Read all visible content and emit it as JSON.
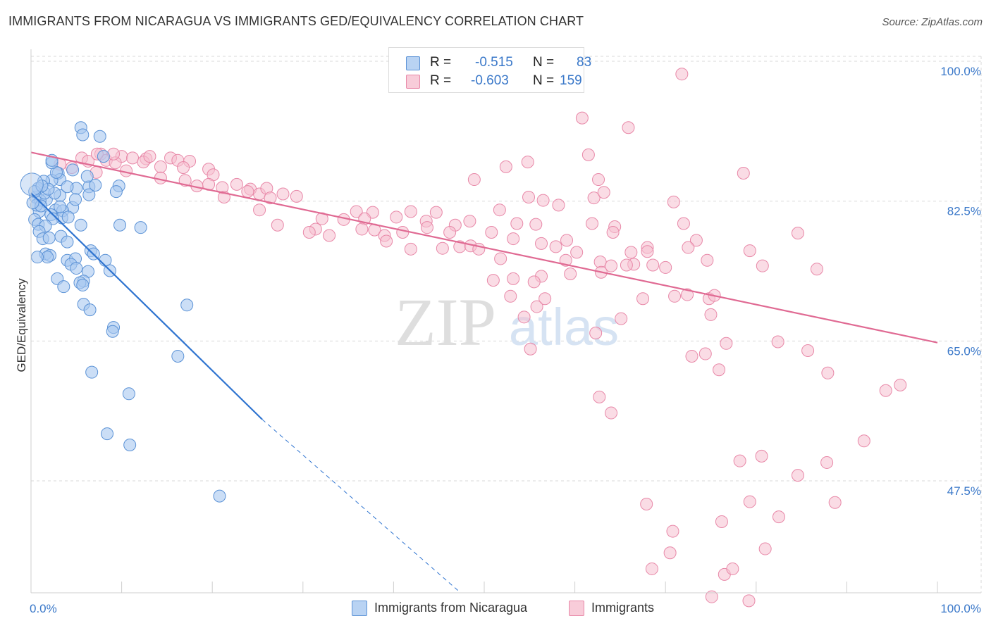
{
  "header": {
    "title": "IMMIGRANTS FROM NICARAGUA VS IMMIGRANTS GED/EQUIVALENCY CORRELATION CHART",
    "source": "Source: ZipAtlas.com"
  },
  "legend": {
    "series1": {
      "r_label": "R =",
      "r_value": "-0.515",
      "n_label": "N =",
      "n_value": "83"
    },
    "series2": {
      "r_label": "R =",
      "r_value": "-0.603",
      "n_label": "N =",
      "n_value": "159"
    }
  },
  "watermark": {
    "part1": "ZIP",
    "part2": "atlas"
  },
  "colors": {
    "blue_fill": "#a9c8f0",
    "blue_stroke": "#5b92d6",
    "blue_line": "#2f74d0",
    "pink_fill": "#f6bfd0",
    "pink_stroke": "#e888a8",
    "pink_line": "#e06a93",
    "tick_label": "#3a78c9",
    "grid": "#d9d9d9"
  },
  "chart_data": {
    "type": "scatter",
    "title": "IMMIGRANTS FROM NICARAGUA VS IMMIGRANTS GED/EQUIVALENCY CORRELATION CHART",
    "xlabel": "",
    "ylabel": "GED/Equivalency",
    "xlim": [
      0,
      100
    ],
    "ylim": [
      33.5,
      101.5
    ],
    "x_tick_labels": [
      "0.0%",
      "100.0%"
    ],
    "y_ticks": [
      47.5,
      65.0,
      82.5,
      100.0
    ],
    "y_tick_labels": [
      "47.5%",
      "65.0%",
      "82.5%",
      "100.0%"
    ],
    "grid": true,
    "legend_position": "top-center and bottom",
    "series": [
      {
        "name": "Immigrants from Nicaragua",
        "color": "#5b92d6",
        "points": [
          [
            5.5,
            91.7
          ],
          [
            7.6,
            90.6
          ],
          [
            5.7,
            90.8
          ],
          [
            3.0,
            86.0
          ],
          [
            3.2,
            85.2
          ],
          [
            2.3,
            85.1
          ],
          [
            1.4,
            85.0
          ],
          [
            5.0,
            84.1
          ],
          [
            6.4,
            84.3
          ],
          [
            6.4,
            83.3
          ],
          [
            7.1,
            84.5
          ],
          [
            6.2,
            85.6
          ],
          [
            9.7,
            84.4
          ],
          [
            9.4,
            83.7
          ],
          [
            0.5,
            83.0
          ],
          [
            1.7,
            82.7
          ],
          [
            3.2,
            83.2
          ],
          [
            1.0,
            82.6
          ],
          [
            2.7,
            81.4
          ],
          [
            4.6,
            81.7
          ],
          [
            0.9,
            81.2
          ],
          [
            2.2,
            80.8
          ],
          [
            3.5,
            81.3
          ],
          [
            3.4,
            80.4
          ],
          [
            4.1,
            80.5
          ],
          [
            2.4,
            80.3
          ],
          [
            0.4,
            80.2
          ],
          [
            0.8,
            79.6
          ],
          [
            1.6,
            79.4
          ],
          [
            5.5,
            79.5
          ],
          [
            9.8,
            79.5
          ],
          [
            12.1,
            79.2
          ],
          [
            0.9,
            78.7
          ],
          [
            1.3,
            77.8
          ],
          [
            2.0,
            77.9
          ],
          [
            3.3,
            78.1
          ],
          [
            4.0,
            77.4
          ],
          [
            6.6,
            76.3
          ],
          [
            6.9,
            75.9
          ],
          [
            1.6,
            75.9
          ],
          [
            2.1,
            75.7
          ],
          [
            1.8,
            75.5
          ],
          [
            0.7,
            75.5
          ],
          [
            4.0,
            75.1
          ],
          [
            4.9,
            75.3
          ],
          [
            8.2,
            75.1
          ],
          [
            4.4,
            74.6
          ],
          [
            5.0,
            74.1
          ],
          [
            6.3,
            73.7
          ],
          [
            8.7,
            73.8
          ],
          [
            2.9,
            72.8
          ],
          [
            5.8,
            72.5
          ],
          [
            5.4,
            72.3
          ],
          [
            5.7,
            72.0
          ],
          [
            3.6,
            71.8
          ],
          [
            5.8,
            69.6
          ],
          [
            17.2,
            69.5
          ],
          [
            6.5,
            68.9
          ],
          [
            9.1,
            66.7
          ],
          [
            9.0,
            66.2
          ],
          [
            16.2,
            63.1
          ],
          [
            6.7,
            61.1
          ],
          [
            10.8,
            58.4
          ],
          [
            8.4,
            53.4
          ],
          [
            10.9,
            52.0
          ],
          [
            20.8,
            45.6
          ],
          [
            1.5,
            83.5
          ],
          [
            4.9,
            82.7
          ],
          [
            0.6,
            82.0
          ],
          [
            1.1,
            81.9
          ],
          [
            2.6,
            83.5
          ],
          [
            3.2,
            81.8
          ],
          [
            0.8,
            84.1
          ],
          [
            0.4,
            83.7
          ],
          [
            2.8,
            86.1
          ],
          [
            4.0,
            84.3
          ],
          [
            8.0,
            88.1
          ],
          [
            1.9,
            84.0
          ],
          [
            2.3,
            87.3
          ],
          [
            2.3,
            87.6
          ],
          [
            4.6,
            86.4
          ],
          [
            0.2,
            82.3
          ],
          [
            1.2,
            84.4
          ]
        ],
        "trendline": {
          "x": [
            0,
            25.5
          ],
          "y": [
            83.5,
            55.2
          ],
          "dashed_extension": {
            "x": [
              25.5,
              47.4
            ],
            "y": [
              55.2,
              33.5
            ]
          }
        }
      },
      {
        "name": "Immigrants",
        "color": "#e888a8",
        "points": [
          [
            71.8,
            98.4
          ],
          [
            60.8,
            92.9
          ],
          [
            65.9,
            91.7
          ],
          [
            7.7,
            88.4
          ],
          [
            10.0,
            88.1
          ],
          [
            11.2,
            87.9
          ],
          [
            12.7,
            87.8
          ],
          [
            5.6,
            87.9
          ],
          [
            6.3,
            87.5
          ],
          [
            8.3,
            87.6
          ],
          [
            9.3,
            87.3
          ],
          [
            12.4,
            87.4
          ],
          [
            15.4,
            87.9
          ],
          [
            16.2,
            87.6
          ],
          [
            17.5,
            87.5
          ],
          [
            7.3,
            88.4
          ],
          [
            9.1,
            88.4
          ],
          [
            13.1,
            88.1
          ],
          [
            3.2,
            87.1
          ],
          [
            4.5,
            86.7
          ],
          [
            7.2,
            86.1
          ],
          [
            10.5,
            86.3
          ],
          [
            14.3,
            86.8
          ],
          [
            16.8,
            86.7
          ],
          [
            19.6,
            86.5
          ],
          [
            20.1,
            85.8
          ],
          [
            61.5,
            88.3
          ],
          [
            54.8,
            87.4
          ],
          [
            52.4,
            86.8
          ],
          [
            48.9,
            85.2
          ],
          [
            62.6,
            85.2
          ],
          [
            78.6,
            86.0
          ],
          [
            14.3,
            85.4
          ],
          [
            17.0,
            85.1
          ],
          [
            19.6,
            84.6
          ],
          [
            22.7,
            84.6
          ],
          [
            24.2,
            84.0
          ],
          [
            25.2,
            83.4
          ],
          [
            18.3,
            84.4
          ],
          [
            21.1,
            84.2
          ],
          [
            23.9,
            83.7
          ],
          [
            26.0,
            84.1
          ],
          [
            27.8,
            83.4
          ],
          [
            29.3,
            83.1
          ],
          [
            21.3,
            83.0
          ],
          [
            26.4,
            82.9
          ],
          [
            54.9,
            83.0
          ],
          [
            56.5,
            82.6
          ],
          [
            58.2,
            82.0
          ],
          [
            62.1,
            82.9
          ],
          [
            63.2,
            83.6
          ],
          [
            70.9,
            82.4
          ],
          [
            25.2,
            81.4
          ],
          [
            35.9,
            81.2
          ],
          [
            37.7,
            81.1
          ],
          [
            41.9,
            81.2
          ],
          [
            44.7,
            81.1
          ],
          [
            51.7,
            81.4
          ],
          [
            32.1,
            80.3
          ],
          [
            34.5,
            80.2
          ],
          [
            36.8,
            80.3
          ],
          [
            40.3,
            80.5
          ],
          [
            43.6,
            80.0
          ],
          [
            48.4,
            80.0
          ],
          [
            53.6,
            79.7
          ],
          [
            55.7,
            79.6
          ],
          [
            61.9,
            79.7
          ],
          [
            64.4,
            79.3
          ],
          [
            72.0,
            79.7
          ],
          [
            27.2,
            79.5
          ],
          [
            31.4,
            79.0
          ],
          [
            30.7,
            78.6
          ],
          [
            32.9,
            78.2
          ],
          [
            36.5,
            79.0
          ],
          [
            37.9,
            78.9
          ],
          [
            39.0,
            78.2
          ],
          [
            41.0,
            78.6
          ],
          [
            43.7,
            79.2
          ],
          [
            46.8,
            79.5
          ],
          [
            50.8,
            78.6
          ],
          [
            46.2,
            78.6
          ],
          [
            64.2,
            78.6
          ],
          [
            59.1,
            77.6
          ],
          [
            56.3,
            77.2
          ],
          [
            53.2,
            77.8
          ],
          [
            73.4,
            77.6
          ],
          [
            39.2,
            77.5
          ],
          [
            47.3,
            76.8
          ],
          [
            48.5,
            76.9
          ],
          [
            57.9,
            76.8
          ],
          [
            68.0,
            76.7
          ],
          [
            72.5,
            76.7
          ],
          [
            68.0,
            76.2
          ],
          [
            79.3,
            76.3
          ],
          [
            84.6,
            78.5
          ],
          [
            41.9,
            76.5
          ],
          [
            45.4,
            76.6
          ],
          [
            49.4,
            76.5
          ],
          [
            60.2,
            76.1
          ],
          [
            66.2,
            76.1
          ],
          [
            51.8,
            75.3
          ],
          [
            59.0,
            75.1
          ],
          [
            62.8,
            74.9
          ],
          [
            66.5,
            74.6
          ],
          [
            70.0,
            74.2
          ],
          [
            74.6,
            75.1
          ],
          [
            80.7,
            74.4
          ],
          [
            86.7,
            74.0
          ],
          [
            68.6,
            74.5
          ],
          [
            65.7,
            74.5
          ],
          [
            64.0,
            74.4
          ],
          [
            62.9,
            73.6
          ],
          [
            59.5,
            73.4
          ],
          [
            56.3,
            73.1
          ],
          [
            53.2,
            72.8
          ],
          [
            51.0,
            72.6
          ],
          [
            55.5,
            72.4
          ],
          [
            52.9,
            70.6
          ],
          [
            56.7,
            70.3
          ],
          [
            67.5,
            70.3
          ],
          [
            72.4,
            70.8
          ],
          [
            74.8,
            70.3
          ],
          [
            75.4,
            70.7
          ],
          [
            71.0,
            70.6
          ],
          [
            55.8,
            69.3
          ],
          [
            54.4,
            68.0
          ],
          [
            65.1,
            67.8
          ],
          [
            75.0,
            68.3
          ],
          [
            62.3,
            66.0
          ],
          [
            55.1,
            64.0
          ],
          [
            76.7,
            64.7
          ],
          [
            82.4,
            64.9
          ],
          [
            85.7,
            63.8
          ],
          [
            74.4,
            63.4
          ],
          [
            72.9,
            63.1
          ],
          [
            75.9,
            61.4
          ],
          [
            87.9,
            61.0
          ],
          [
            95.9,
            59.5
          ],
          [
            94.3,
            58.8
          ],
          [
            91.9,
            52.5
          ],
          [
            80.6,
            50.6
          ],
          [
            87.8,
            49.8
          ],
          [
            78.2,
            50.0
          ],
          [
            84.6,
            48.2
          ],
          [
            67.9,
            44.6
          ],
          [
            79.3,
            44.9
          ],
          [
            70.8,
            41.2
          ],
          [
            76.2,
            42.4
          ],
          [
            68.5,
            36.5
          ],
          [
            76.5,
            35.8
          ],
          [
            75.1,
            33.0
          ],
          [
            79.2,
            32.5
          ],
          [
            77.4,
            36.5
          ],
          [
            70.5,
            38.5
          ],
          [
            81.0,
            39.0
          ],
          [
            82.5,
            43.0
          ],
          [
            88.7,
            44.8
          ],
          [
            64.0,
            56.0
          ],
          [
            62.7,
            58.0
          ]
        ],
        "trendline": {
          "x": [
            0,
            100
          ],
          "y": [
            88.6,
            64.8
          ]
        }
      }
    ]
  },
  "bottom_legend": {
    "item1": "Immigrants from Nicaragua",
    "item2": "Immigrants"
  }
}
